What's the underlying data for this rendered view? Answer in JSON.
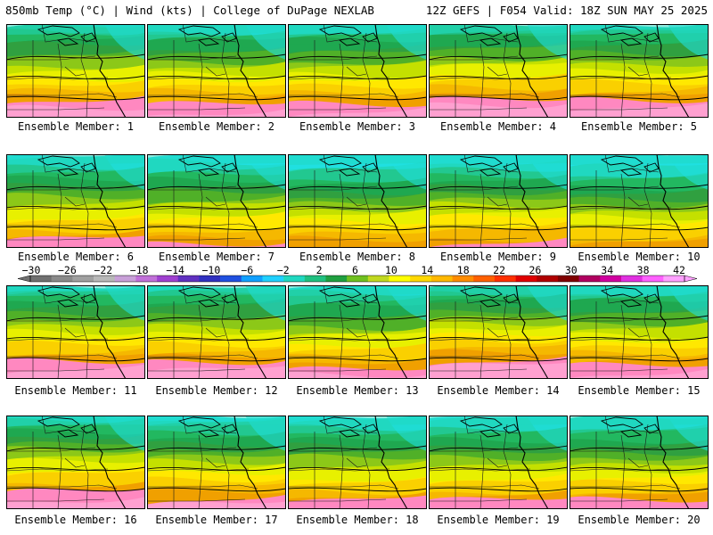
{
  "header": {
    "left": "850mb Temp (°C) | Wind (kts) | College of DuPage NEXLAB",
    "right": "12Z GEFS | F054 Valid: 18Z SUN MAY 25 2025"
  },
  "members": [
    {
      "label": "Ensemble Member: 1",
      "warmth": 0.1
    },
    {
      "label": "Ensemble Member: 2",
      "warmth": 0.05
    },
    {
      "label": "Ensemble Member: 3",
      "warmth": 0.05
    },
    {
      "label": "Ensemble Member: 4",
      "warmth": 0.15
    },
    {
      "label": "Ensemble Member: 5",
      "warmth": 0.1
    },
    {
      "label": "Ensemble Member: 6",
      "warmth": -0.05
    },
    {
      "label": "Ensemble Member: 7",
      "warmth": -0.1
    },
    {
      "label": "Ensemble Member: 8",
      "warmth": -0.15
    },
    {
      "label": "Ensemble Member: 9",
      "warmth": -0.1
    },
    {
      "label": "Ensemble Member: 10",
      "warmth": -0.2
    },
    {
      "label": "Ensemble Member: 11",
      "warmth": 0.1
    },
    {
      "label": "Ensemble Member: 12",
      "warmth": 0.1
    },
    {
      "label": "Ensemble Member: 13",
      "warmth": 0.0
    },
    {
      "label": "Ensemble Member: 14",
      "warmth": 0.15
    },
    {
      "label": "Ensemble Member: 15",
      "warmth": 0.05
    },
    {
      "label": "Ensemble Member: 16",
      "warmth": 0.1
    },
    {
      "label": "Ensemble Member: 17",
      "warmth": 0.0
    },
    {
      "label": "Ensemble Member: 18",
      "warmth": -0.05
    },
    {
      "label": "Ensemble Member: 19",
      "warmth": -0.05
    },
    {
      "label": "Ensemble Member: 20",
      "warmth": -0.05
    }
  ],
  "colorbar": {
    "labels": [
      "-30",
      "-26",
      "-22",
      "-18",
      "-14",
      "-10",
      "-6",
      "-2",
      "2",
      "6",
      "10",
      "14",
      "18",
      "22",
      "26",
      "30",
      "34",
      "38",
      "42"
    ],
    "colors": [
      "#707070",
      "#8a8a8a",
      "#a0a0a0",
      "#b8b8b8",
      "#c8a0d8",
      "#c070d8",
      "#a040d0",
      "#6030c0",
      "#3030c0",
      "#2050e0",
      "#10a0ff",
      "#20d0ff",
      "#20d8c0",
      "#20c080",
      "#20a040",
      "#70c020",
      "#c0d820",
      "#ffff00",
      "#ffd800",
      "#ffb800",
      "#ff8c00",
      "#ff6000",
      "#ff3000",
      "#e00000",
      "#b00000",
      "#800000",
      "#b00060",
      "#d000a0",
      "#e030e0",
      "#ff60ff",
      "#ffa0ff"
    ],
    "palette": [
      "#ffa0d0",
      "#ff88c0",
      "#f0a000",
      "#f5b800",
      "#fad000",
      "#ffe800",
      "#e8f000",
      "#c4e000",
      "#8cc818",
      "#50b028",
      "#30a040",
      "#1fa850",
      "#22b860",
      "#22c890",
      "#20d8c0",
      "#20e0e0"
    ]
  }
}
